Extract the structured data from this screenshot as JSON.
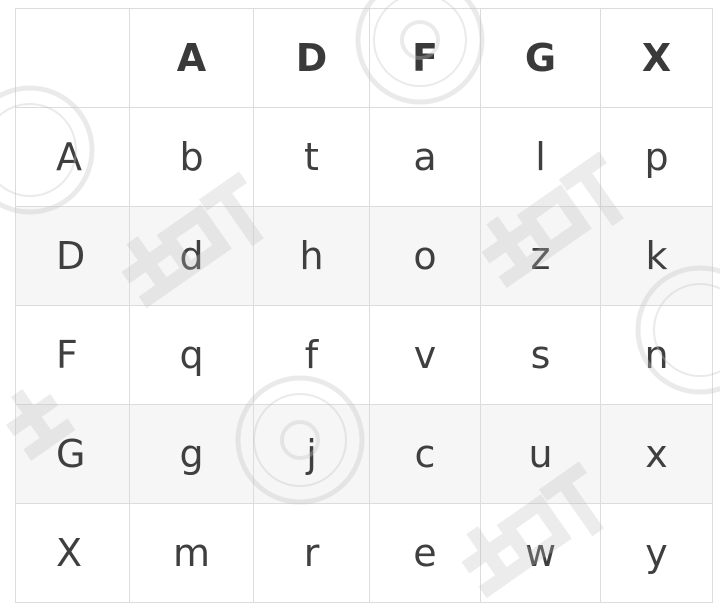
{
  "table": {
    "corner": "",
    "column_headers": [
      "A",
      "D",
      "F",
      "G",
      "X"
    ],
    "rows": [
      {
        "header": "A",
        "cells": [
          "b",
          "t",
          "a",
          "l",
          "p"
        ]
      },
      {
        "header": "D",
        "cells": [
          "d",
          "h",
          "o",
          "z",
          "k"
        ]
      },
      {
        "header": "F",
        "cells": [
          "q",
          "f",
          "v",
          "s",
          "n"
        ]
      },
      {
        "header": "G",
        "cells": [
          "g",
          "j",
          "c",
          "u",
          "x"
        ]
      },
      {
        "header": "X",
        "cells": [
          "m",
          "r",
          "e",
          "w",
          "y"
        ]
      }
    ]
  },
  "colors": {
    "grid_line": "#dcdcdc",
    "shaded_row": "#f6f6f6",
    "text": "#3f3f3f",
    "watermark": "#bfbfbf"
  }
}
